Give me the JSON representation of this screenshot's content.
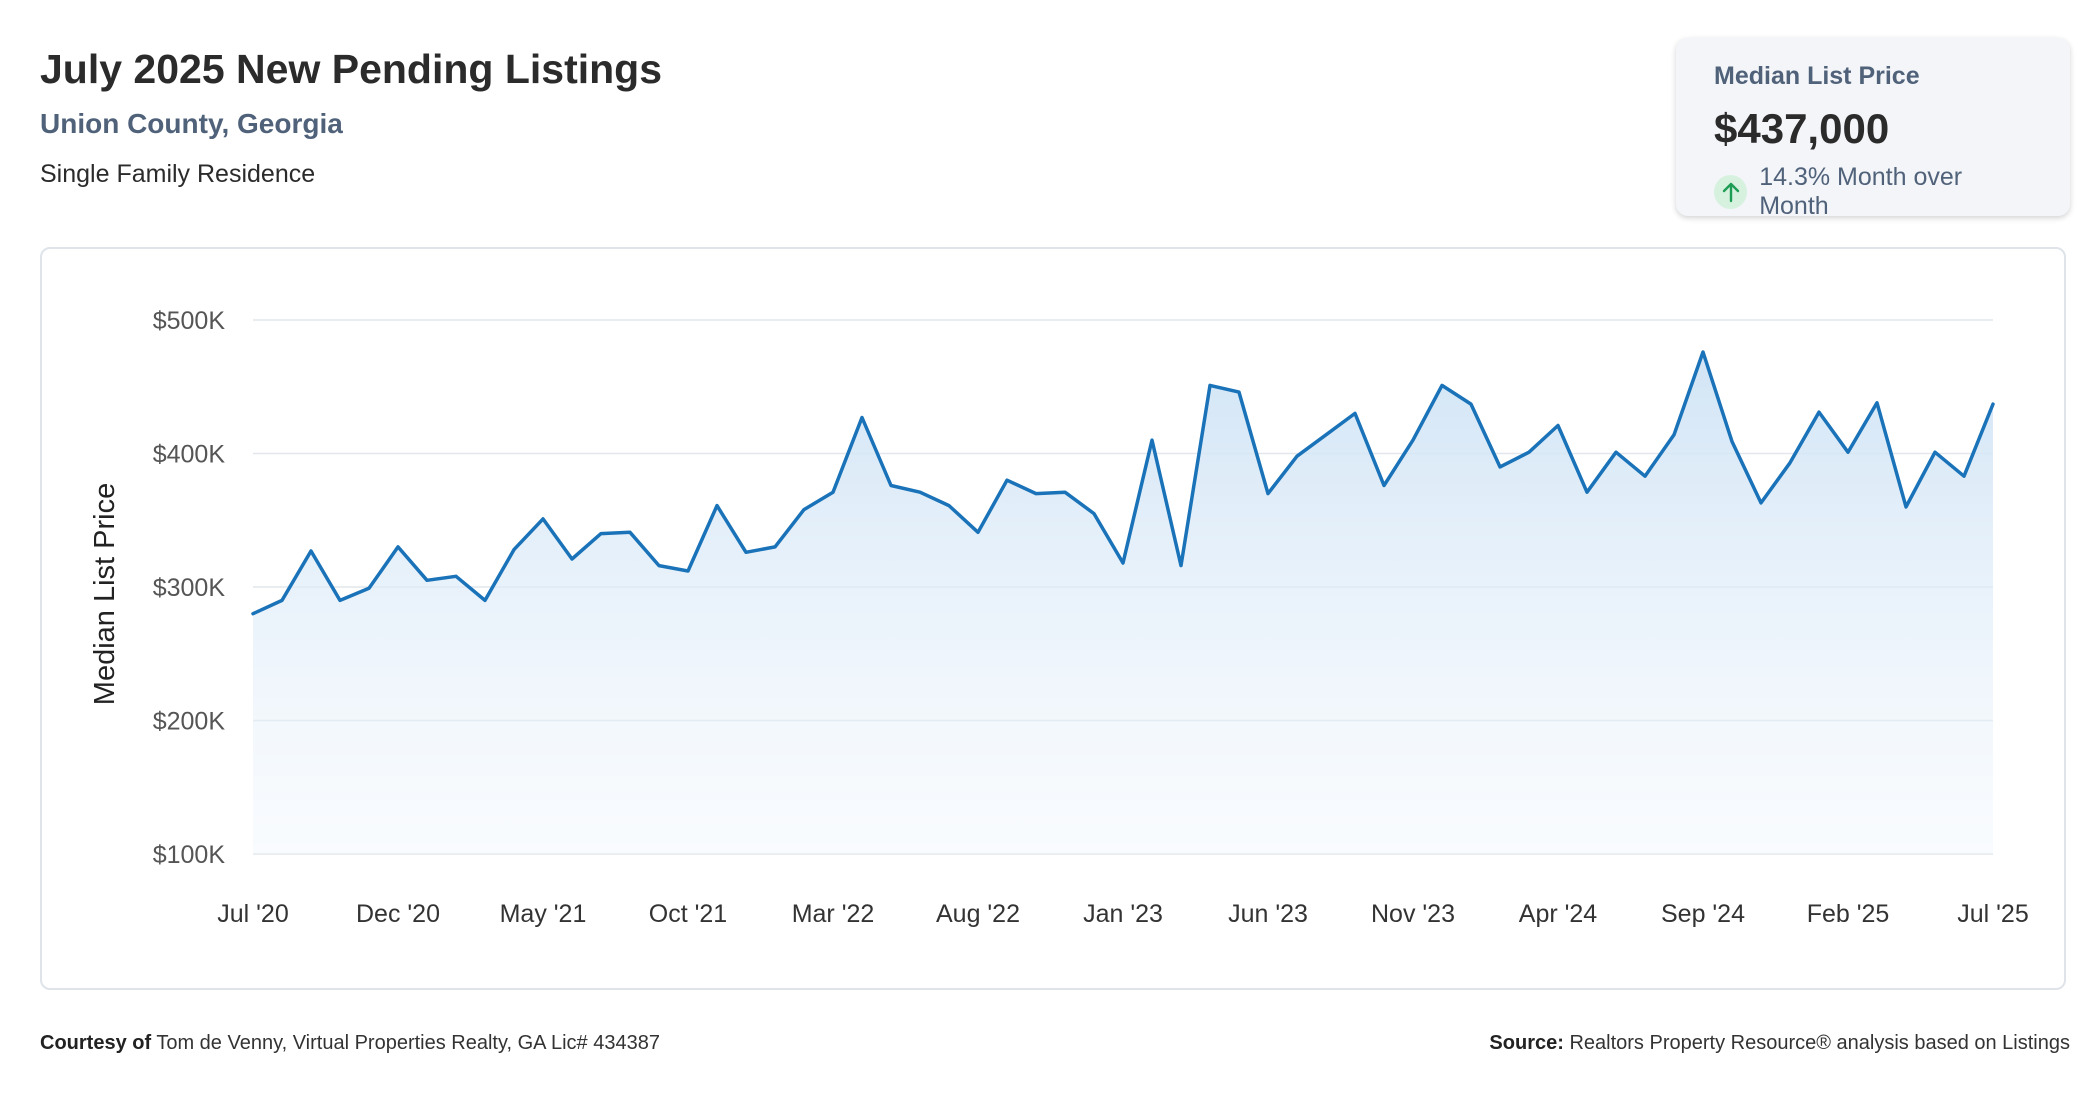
{
  "header": {
    "title": "July 2025 New Pending Listings",
    "subtitle": "Union County, Georgia",
    "segment": "Single Family Residence"
  },
  "kpi": {
    "label": "Median List Price",
    "value": "$437,000",
    "change": "14.3% Month over Month",
    "direction": "up",
    "arrow_icon": "arrow-up-icon",
    "arrow_color": "#1f9d55"
  },
  "chart_data": {
    "type": "area",
    "ylabel": "Median List Price",
    "ylim": [
      100000,
      500000
    ],
    "yticks": [
      100000,
      200000,
      300000,
      400000,
      500000
    ],
    "ytick_labels": [
      "$100K",
      "$200K",
      "$300K",
      "$400K",
      "$500K"
    ],
    "xtick_labels": [
      "Jul '20",
      "Dec '20",
      "May '21",
      "Oct '21",
      "Mar '22",
      "Aug '22",
      "Jan '23",
      "Jun '23",
      "Nov '23",
      "Apr '24",
      "Sep '24",
      "Feb '25",
      "Jul '25"
    ],
    "xtick_every": 5,
    "grid": true,
    "line_color": "#1a73b8",
    "fill_color": "#d3e6f6",
    "series": [
      {
        "values": [
          280000,
          290000,
          327000,
          290000,
          299000,
          330000,
          305000,
          308000,
          290000,
          328000,
          351000,
          321000,
          340000,
          341000,
          316000,
          312000,
          361000,
          326000,
          330000,
          358000,
          371000,
          427000,
          376000,
          371000,
          361000,
          341000,
          380000,
          370000,
          371000,
          355000,
          318000,
          410000,
          316000,
          451000,
          446000,
          370000,
          398000,
          414000,
          430000,
          376000,
          410000,
          451000,
          437000,
          390000,
          401000,
          421000,
          371000,
          401000,
          383000,
          414000,
          476000,
          409000,
          363000,
          393000,
          431000,
          401000,
          438000,
          360000,
          401000,
          383000,
          437000
        ]
      }
    ]
  },
  "footer": {
    "courtesy_label": "Courtesy of",
    "courtesy_text": "Tom de Venny, Virtual Properties Realty, GA Lic# 434387",
    "source_label": "Source:",
    "source_text": "Realtors Property Resource® analysis based on Listings"
  }
}
